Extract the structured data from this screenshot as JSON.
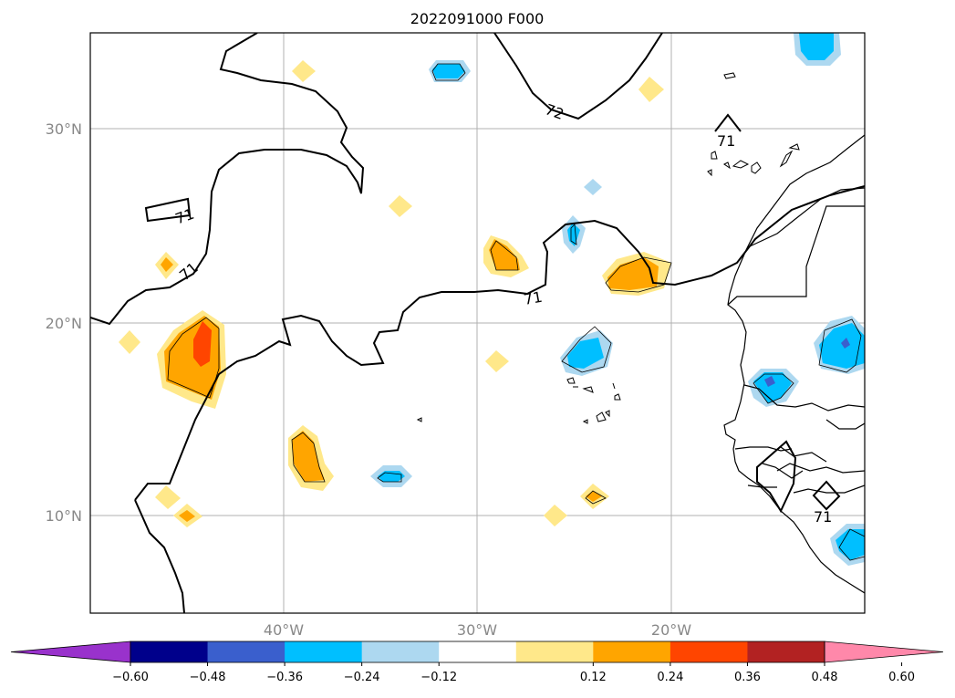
{
  "title": "2022091000 F000",
  "map": {
    "lat_labels": [
      "30°N",
      "20°N",
      "10°N"
    ],
    "lon_labels": [
      "40°W",
      "30°W",
      "20°W"
    ],
    "contour_labels": [
      "72",
      "71",
      "71",
      "71",
      "71",
      "71"
    ]
  },
  "colorbar": {
    "colors": [
      "#9932cc",
      "#00008b",
      "#3a5fcd",
      "#00bfff",
      "#add8f0",
      "#ffffff",
      "#ffe88a",
      "#ffa500",
      "#ff4500",
      "#b22222",
      "#ff88aa"
    ],
    "tick_labels": [
      "−0.60",
      "−0.48",
      "−0.36",
      "−0.24",
      "−0.12",
      "0.12",
      "0.24",
      "0.36",
      "0.48",
      "0.60"
    ]
  }
}
